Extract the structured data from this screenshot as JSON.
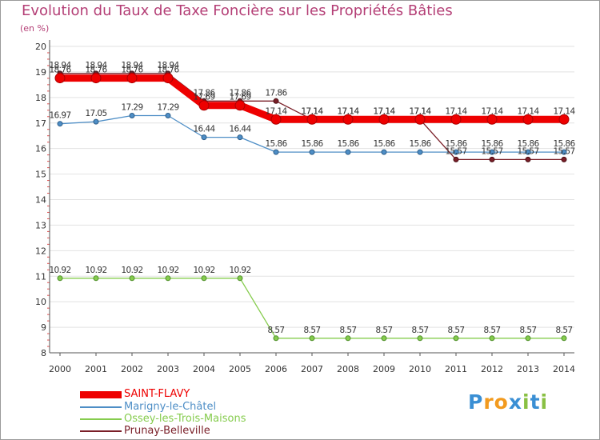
{
  "header": {
    "title": "Evolution du Taux de Taxe Foncière sur les Propriétés Bâties",
    "unit": "(en %)"
  },
  "logo": {
    "text": "Proxiti",
    "letters": [
      "P",
      "r",
      "o",
      "x",
      "i",
      "t",
      "i"
    ],
    "letter_colors": [
      "#3a8fd4",
      "#f29a1e",
      "#f29a1e",
      "#3a8fd4",
      "#89c043",
      "#3a8fd4",
      "#89c043"
    ]
  },
  "chart_data": {
    "type": "line",
    "title": "Evolution du Taux de Taxe Foncière sur les Propriétés Bâties",
    "ylabel": "(en %)",
    "xlabel": "",
    "ylim": [
      8,
      20
    ],
    "yticks": [
      "8",
      "9",
      "10",
      "11",
      "12",
      "13",
      "14",
      "15",
      "16",
      "17",
      "18",
      "19",
      "20"
    ],
    "x": [
      "2000",
      "2001",
      "2002",
      "2003",
      "2004",
      "2005",
      "2006",
      "2007",
      "2008",
      "2009",
      "2010",
      "2011",
      "2012",
      "2013",
      "2014"
    ],
    "grid": "horizontal",
    "legend_position": "bottom-left",
    "series": [
      {
        "name": "SAINT-FLAVY",
        "color": "#ee0000",
        "values": [
          18.76,
          18.76,
          18.76,
          18.76,
          17.69,
          17.69,
          17.14,
          17.14,
          17.14,
          17.14,
          17.14,
          17.14,
          17.14,
          17.14,
          17.14
        ],
        "labels": [
          "18.76",
          "18.76",
          "18.76",
          "18.76",
          "17.69",
          "17.69",
          "17.14",
          "17.14",
          "17.14",
          "17.14",
          "17.14",
          "17.14",
          "17.14",
          "17.14",
          "17.14"
        ]
      },
      {
        "name": "Marigny-le-Châtel",
        "color": "#4e8ec6",
        "values": [
          16.97,
          17.05,
          17.29,
          17.29,
          16.44,
          16.44,
          15.86,
          15.86,
          15.86,
          15.86,
          15.86,
          15.86,
          15.86,
          15.86,
          15.86
        ],
        "labels": [
          "16.97",
          "17.05",
          "17.29",
          "17.29",
          "16.44",
          "16.44",
          "15.86",
          "15.86",
          "15.86",
          "15.86",
          "15.86",
          "15.86",
          "15.86",
          "15.86",
          "15.86"
        ]
      },
      {
        "name": "Ossey-les-Trois-Maisons",
        "color": "#86cc4e",
        "values": [
          10.92,
          10.92,
          10.92,
          10.92,
          10.92,
          10.92,
          8.57,
          8.57,
          8.57,
          8.57,
          8.57,
          8.57,
          8.57,
          8.57,
          8.57
        ],
        "labels": [
          "10.92",
          "10.92",
          "10.92",
          "10.92",
          "10.92",
          "10.92",
          "8.57",
          "8.57",
          "8.57",
          "8.57",
          "8.57",
          "8.57",
          "8.57",
          "8.57",
          "8.57"
        ]
      },
      {
        "name": "Prunay-Belleville",
        "color": "#7a1f28",
        "values": [
          18.94,
          18.94,
          18.94,
          18.94,
          17.86,
          17.86,
          17.86,
          17.14,
          17.14,
          17.14,
          17.14,
          15.57,
          15.57,
          15.57,
          15.57
        ],
        "labels": [
          "18.94",
          "18.94",
          "18.94",
          "18.94",
          "17.86",
          "17.86",
          "17.86",
          "17.14",
          "17.14",
          "17.14",
          "17.14",
          "15.57",
          "15.57",
          "15.57",
          "15.57"
        ]
      }
    ]
  }
}
